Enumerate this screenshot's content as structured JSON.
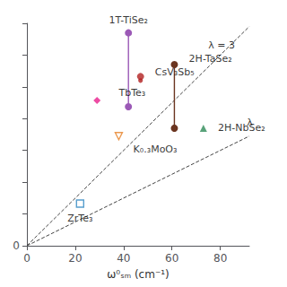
{
  "chart_data": {
    "type": "scatter",
    "xlabel": "ω⁰ₛₘ (cm⁻¹)",
    "xlim": [
      0,
      92
    ],
    "ylim": [
      0,
      280
    ],
    "xticks": [
      0,
      20,
      40,
      60,
      80
    ],
    "yticks": [
      0,
      {
        "value": 40,
        "label": ""
      },
      {
        "value": 80,
        "label": ""
      },
      {
        "value": 120,
        "label": ""
      },
      {
        "value": 160,
        "label": ""
      },
      {
        "value": 200,
        "label": ""
      },
      {
        "value": 240,
        "label": ""
      },
      {
        "value": 280,
        "label": ""
      }
    ],
    "grid": false,
    "series": [
      {
        "type": "line",
        "line_style": "dashed",
        "color": "#444444",
        "x": [
          0,
          92
        ],
        "values": [
          0,
          276
        ],
        "label": "λ = 3",
        "label_x": 75,
        "label_y": 252
      },
      {
        "type": "line",
        "line_style": "dashed",
        "color": "#444444",
        "x": [
          0,
          92
        ],
        "values": [
          0,
          138
        ],
        "label": "λ",
        "label_x": 91,
        "label_y": 155
      },
      {
        "type": "range",
        "name": "1T-TiSe₂",
        "marker": "circle",
        "color": "#9B59B6",
        "x": [
          42,
          42
        ],
        "values": [
          268,
          175
        ],
        "label_x": 42,
        "label_y": 278
      },
      {
        "type": "scatter",
        "name": "CsV₃Sb₅",
        "marker": "circle",
        "color": "#B22222",
        "x": [
          47,
          47
        ],
        "values": [
          213,
          208
        ],
        "label_x": 53,
        "label_y": 218
      },
      {
        "type": "scatter",
        "name": "TbTe₃",
        "marker": "diamond",
        "color": "#E91E8C",
        "x": [
          29
        ],
        "values": [
          183
        ],
        "label_x": 38,
        "label_y": 193
      },
      {
        "type": "range",
        "name": "2H-TaSe₂",
        "marker": "circle",
        "color": "#6B3520",
        "x": [
          61,
          61
        ],
        "values": [
          228,
          148
        ],
        "label_x": 67,
        "label_y": 235
      },
      {
        "type": "scatter",
        "name": "K₀.₃MoO₃",
        "marker": "triangle-down-open",
        "color": "#E67E22",
        "x": [
          38
        ],
        "values": [
          138
        ],
        "label_x": 44,
        "label_y": 128
      },
      {
        "type": "scatter",
        "name": "2H-NbSe₂",
        "marker": "triangle",
        "color": "#2E8B57",
        "x": [
          73
        ],
        "values": [
          148
        ],
        "label_x": 79,
        "label_y": 148
      },
      {
        "type": "scatter",
        "name": "ZrTe₃",
        "marker": "square-open",
        "color": "#2E86C1",
        "x": [
          22
        ],
        "values": [
          53
        ],
        "label_x": 22,
        "label_y": 41
      }
    ]
  }
}
